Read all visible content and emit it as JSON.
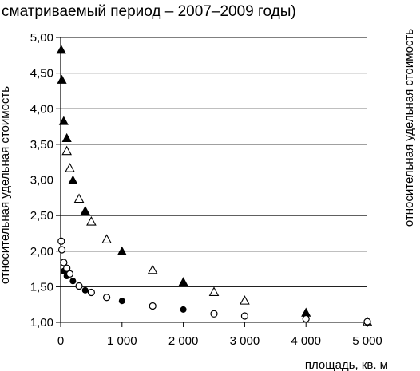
{
  "title": "сматриваемый период – 2007–2009 годы)",
  "chart_data": {
    "type": "scatter",
    "title": "сматриваемый период – 2007–2009 годы)",
    "xlabel": "площадь, кв. м",
    "ylabel": "относительная удельная стоимость",
    "ylabel_right": "относительная удельная стоимость",
    "xlim": [
      0,
      5000
    ],
    "ylim": [
      1.0,
      5.0
    ],
    "x_ticks": [
      0,
      1000,
      2000,
      3000,
      4000,
      5000
    ],
    "x_tick_labels": [
      "0",
      "1 000",
      "2 000",
      "3 000",
      "4 000",
      "5 000"
    ],
    "y_ticks": [
      1.0,
      1.5,
      2.0,
      2.5,
      3.0,
      3.5,
      4.0,
      4.5,
      5.0
    ],
    "y_tick_labels": [
      "1,00",
      "1,50",
      "2,00",
      "2,50",
      "3,00",
      "3,50",
      "4,00",
      "4,50",
      "5,00"
    ],
    "grid": "horizontal",
    "series": [
      {
        "marker": "filled-triangle",
        "color": "#000000",
        "points": [
          [
            10,
            4.82
          ],
          [
            20,
            4.4
          ],
          [
            50,
            3.82
          ],
          [
            100,
            3.58
          ],
          [
            200,
            2.99
          ],
          [
            400,
            2.56
          ],
          [
            1000,
            1.99
          ],
          [
            2000,
            1.56
          ],
          [
            4000,
            1.13
          ],
          [
            5000,
            1.0
          ]
        ]
      },
      {
        "marker": "open-triangle",
        "color": "#000000",
        "points": [
          [
            100,
            3.4
          ],
          [
            150,
            3.16
          ],
          [
            300,
            2.73
          ],
          [
            500,
            2.41
          ],
          [
            750,
            2.16
          ],
          [
            1500,
            1.73
          ],
          [
            2500,
            1.42
          ],
          [
            3000,
            1.3
          ],
          [
            5000,
            1.0
          ]
        ]
      },
      {
        "marker": "filled-circle",
        "color": "#000000",
        "points": [
          [
            50,
            1.72
          ],
          [
            100,
            1.65
          ],
          [
            200,
            1.58
          ],
          [
            400,
            1.45
          ],
          [
            1000,
            1.3
          ],
          [
            2000,
            1.18
          ],
          [
            5000,
            1.0
          ]
        ]
      },
      {
        "marker": "open-circle",
        "color": "#000000",
        "points": [
          [
            10,
            2.14
          ],
          [
            20,
            2.02
          ],
          [
            50,
            1.84
          ],
          [
            100,
            1.76
          ],
          [
            150,
            1.68
          ],
          [
            300,
            1.51
          ],
          [
            500,
            1.42
          ],
          [
            750,
            1.35
          ],
          [
            1500,
            1.23
          ],
          [
            2500,
            1.12
          ],
          [
            3000,
            1.09
          ],
          [
            4000,
            1.05
          ],
          [
            5000,
            1.01
          ]
        ]
      }
    ]
  }
}
